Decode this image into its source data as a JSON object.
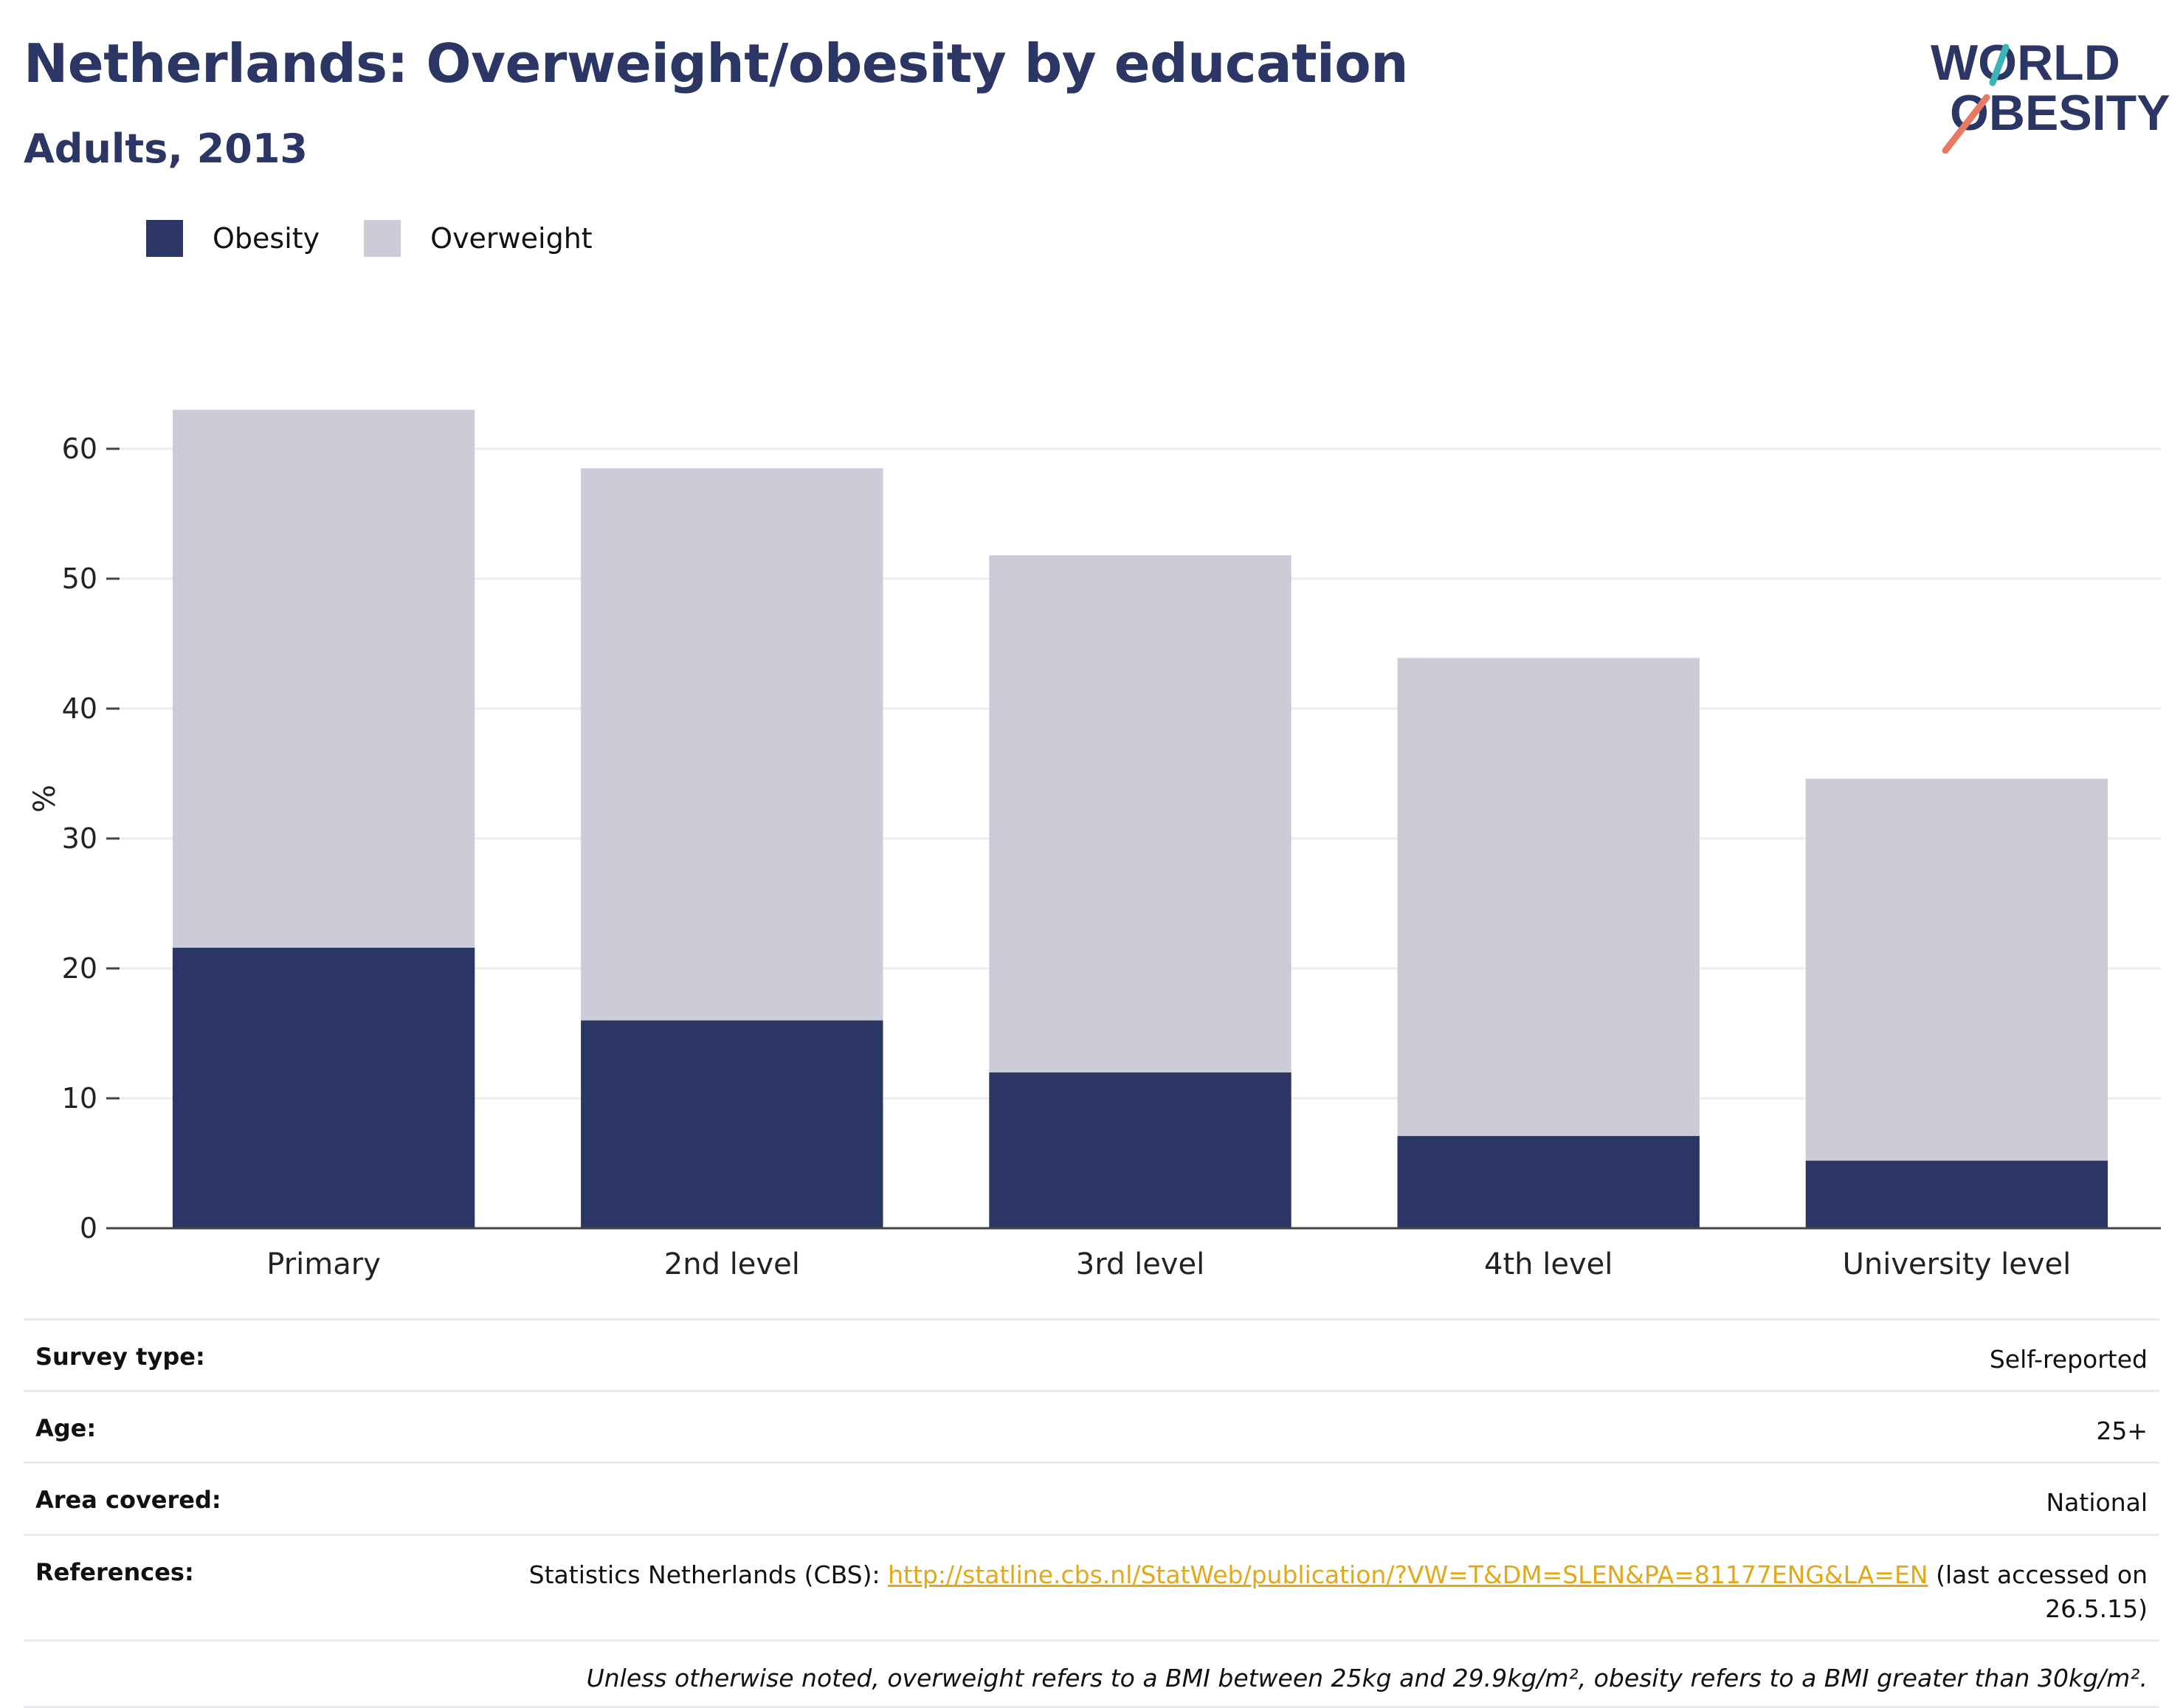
{
  "header": {
    "title": "Netherlands: Overweight/obesity by education",
    "subtitle": "Adults, 2013"
  },
  "logo": {
    "line1": "WORLD",
    "line2": "OBESITY"
  },
  "colors": {
    "obesity": "#2b3664",
    "overweight": "#cbccd8",
    "accent_teal": "#3bb3b8",
    "accent_coral": "#e87a63",
    "link": "#e3a81a"
  },
  "chart_data": {
    "type": "bar",
    "stacked": true,
    "categories": [
      "Primary",
      "2nd level",
      "3rd level",
      "4th level",
      "University level"
    ],
    "series": [
      {
        "name": "Obesity",
        "values": [
          21.6,
          16.0,
          12.0,
          7.1,
          5.2
        ]
      },
      {
        "name": "Overweight",
        "values": [
          41.4,
          42.5,
          39.8,
          36.8,
          29.4
        ]
      }
    ],
    "ylabel": "%",
    "xlabel": "",
    "ylim": [
      0,
      65
    ],
    "yticks": [
      0,
      10,
      20,
      30,
      40,
      50,
      60
    ],
    "grid": true,
    "legend": "top-left"
  },
  "info": {
    "survey_type": {
      "key": "Survey type:",
      "value": "Self-reported"
    },
    "age": {
      "key": "Age:",
      "value": "25+"
    },
    "area": {
      "key": "Area covered:",
      "value": "National"
    },
    "references": {
      "key": "References:",
      "prefix": "Statistics Netherlands (CBS): ",
      "link": "http://statline.cbs.nl/StatWeb/publication/?VW=T&DM=SLEN&PA=81177ENG&LA=EN",
      "suffix": " (last accessed on 26.5.15)"
    },
    "note": "Unless otherwise noted, overweight refers to a BMI between 25kg and 29.9kg/m², obesity refers to a BMI greater than 30kg/m²."
  }
}
